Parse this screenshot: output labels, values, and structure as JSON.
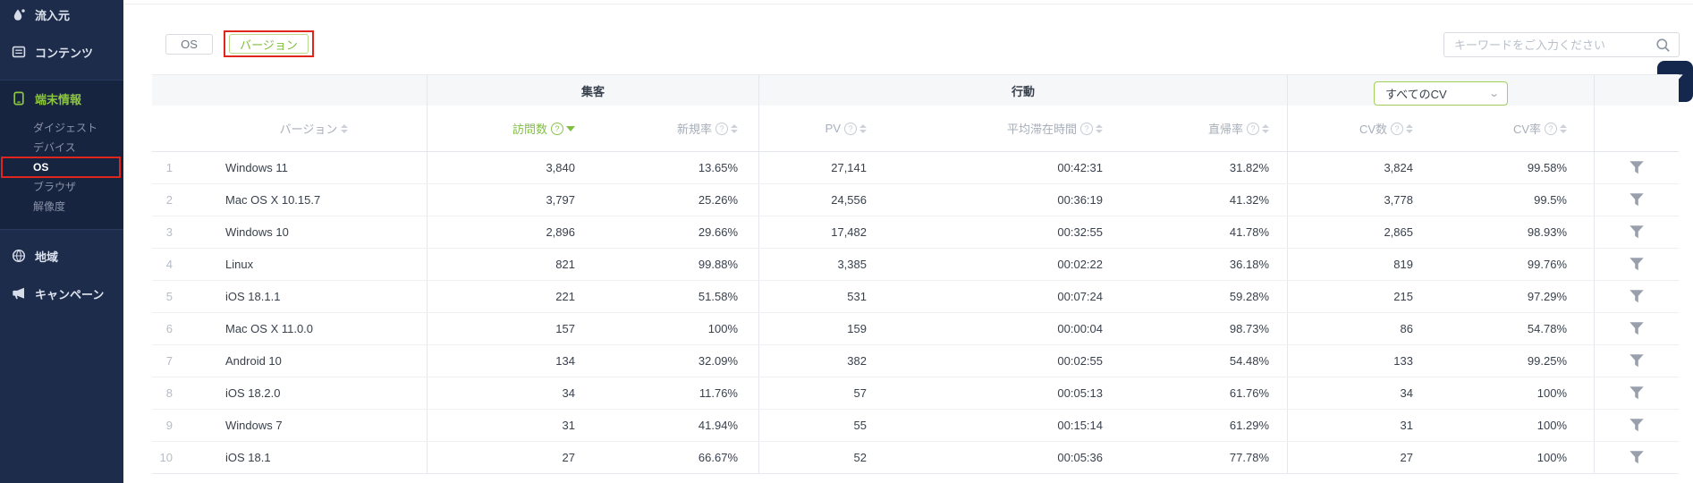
{
  "sidebar": {
    "items": [
      {
        "id": "inflow",
        "label": "流入元",
        "icon": "water-drop-icon"
      },
      {
        "id": "contents",
        "label": "コンテンツ",
        "icon": "document-icon"
      },
      {
        "id": "device-info",
        "label": "端末情報",
        "icon": "mobile-device-icon",
        "active": true
      },
      {
        "id": "region",
        "label": "地域",
        "icon": "globe-icon"
      },
      {
        "id": "campaign",
        "label": "キャンペーン",
        "icon": "megaphone-icon"
      }
    ],
    "submenu": [
      {
        "id": "digest",
        "label": "ダイジェスト"
      },
      {
        "id": "device",
        "label": "デバイス"
      },
      {
        "id": "os",
        "label": "OS",
        "selected": true
      },
      {
        "id": "browser",
        "label": "ブラウザ"
      },
      {
        "id": "resolution",
        "label": "解像度"
      }
    ]
  },
  "toolbar": {
    "tab_os": "OS",
    "tab_version": "バージョン",
    "search_placeholder": "キーワードをご入力ください"
  },
  "table": {
    "group_acquisition": "集客",
    "group_behavior": "行動",
    "cv_filter_value": "すべてのCV",
    "sorted_column": "visits",
    "sort_direction": "desc",
    "columns": {
      "version": "バージョン",
      "visits": "訪問数",
      "new_rate": "新規率",
      "pv": "PV",
      "avg_stay": "平均滞在時間",
      "bounce_rate": "直帰率",
      "cv_count": "CV数",
      "cv_rate": "CV率"
    },
    "rows": [
      {
        "rank": "1",
        "version": "Windows 11",
        "visits": "3,840",
        "new_rate": "13.65%",
        "pv": "27,141",
        "avg_stay": "00:42:31",
        "bounce_rate": "31.82%",
        "cv_count": "3,824",
        "cv_rate": "99.58%"
      },
      {
        "rank": "2",
        "version": "Mac OS X 10.15.7",
        "visits": "3,797",
        "new_rate": "25.26%",
        "pv": "24,556",
        "avg_stay": "00:36:19",
        "bounce_rate": "41.32%",
        "cv_count": "3,778",
        "cv_rate": "99.5%"
      },
      {
        "rank": "3",
        "version": "Windows 10",
        "visits": "2,896",
        "new_rate": "29.66%",
        "pv": "17,482",
        "avg_stay": "00:32:55",
        "bounce_rate": "41.78%",
        "cv_count": "2,865",
        "cv_rate": "98.93%"
      },
      {
        "rank": "4",
        "version": "Linux",
        "visits": "821",
        "new_rate": "99.88%",
        "pv": "3,385",
        "avg_stay": "00:02:22",
        "bounce_rate": "36.18%",
        "cv_count": "819",
        "cv_rate": "99.76%"
      },
      {
        "rank": "5",
        "version": "iOS 18.1.1",
        "visits": "221",
        "new_rate": "51.58%",
        "pv": "531",
        "avg_stay": "00:07:24",
        "bounce_rate": "59.28%",
        "cv_count": "215",
        "cv_rate": "97.29%"
      },
      {
        "rank": "6",
        "version": "Mac OS X 11.0.0",
        "visits": "157",
        "new_rate": "100%",
        "pv": "159",
        "avg_stay": "00:00:04",
        "bounce_rate": "98.73%",
        "cv_count": "86",
        "cv_rate": "54.78%"
      },
      {
        "rank": "7",
        "version": "Android 10",
        "visits": "134",
        "new_rate": "32.09%",
        "pv": "382",
        "avg_stay": "00:02:55",
        "bounce_rate": "54.48%",
        "cv_count": "133",
        "cv_rate": "99.25%"
      },
      {
        "rank": "8",
        "version": "iOS 18.2.0",
        "visits": "34",
        "new_rate": "11.76%",
        "pv": "57",
        "avg_stay": "00:05:13",
        "bounce_rate": "61.76%",
        "cv_count": "34",
        "cv_rate": "100%"
      },
      {
        "rank": "9",
        "version": "Windows 7",
        "visits": "31",
        "new_rate": "41.94%",
        "pv": "55",
        "avg_stay": "00:15:14",
        "bounce_rate": "61.29%",
        "cv_count": "31",
        "cv_rate": "100%"
      },
      {
        "rank": "10",
        "version": "iOS 18.1",
        "visits": "27",
        "new_rate": "66.67%",
        "pv": "52",
        "avg_stay": "00:05:36",
        "bounce_rate": "77.78%",
        "cv_count": "27",
        "cv_rate": "100%"
      }
    ],
    "help_icon_glyph": "?"
  },
  "icons": {
    "search": "magnifier",
    "row_filter": "funnel",
    "filter_panel": "funnel",
    "sort_inactive": "caret-up-down",
    "sort_active": "caret-down-filled",
    "cv_dropdown_chevron": "chevron-down"
  },
  "colors": {
    "sidebar_bg": "#1e2c4b",
    "sidebar_active_bg": "#172440",
    "accent_green": "#7fbe3f",
    "annotation_red": "#e0261c",
    "filter_button_bg": "#14284e",
    "group_header_bg": "#f6f7f9",
    "divider": "#e4e7eb"
  }
}
